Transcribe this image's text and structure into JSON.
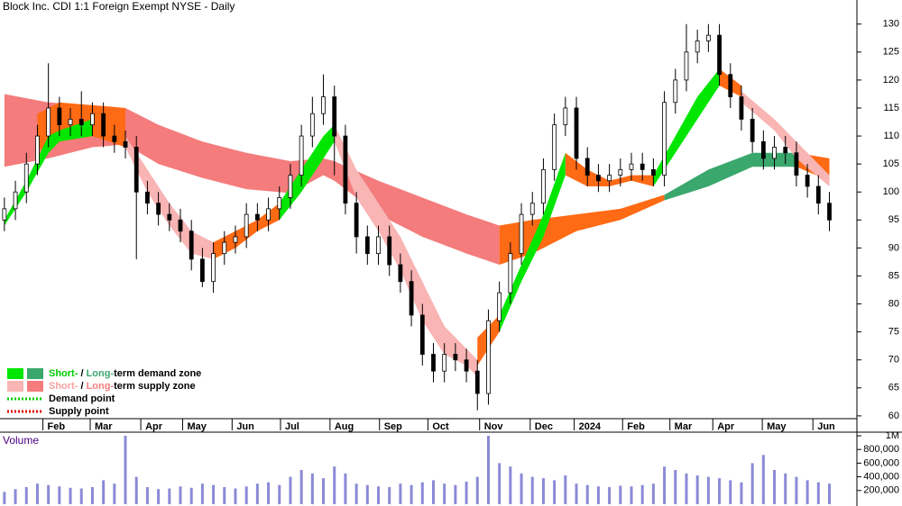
{
  "chart_data": {
    "type": "candlestick",
    "title": "Block Inc. CDI 1:1 Foreign Exempt NYSE - Daily",
    "x": [
      0,
      1,
      2,
      3,
      4,
      5,
      6,
      7,
      8,
      9,
      10,
      11,
      12,
      13,
      14,
      15,
      16,
      17,
      18,
      19,
      20,
      21,
      22,
      23,
      24,
      25,
      26,
      27,
      28,
      29,
      30,
      31,
      32,
      33,
      34,
      35,
      36,
      37,
      38,
      39,
      40,
      41,
      42,
      43,
      44,
      45,
      46,
      47,
      48,
      49,
      50,
      51,
      52,
      53,
      54,
      55,
      56,
      57,
      58,
      59,
      60,
      61,
      62,
      63,
      64,
      65,
      66,
      67,
      68,
      69,
      70,
      71,
      72,
      73,
      74,
      75
    ],
    "open": [
      95,
      97,
      100,
      105,
      110,
      115,
      112,
      113,
      112,
      114,
      110,
      109,
      108,
      100,
      98,
      96,
      95,
      93,
      88,
      84,
      89,
      91,
      92,
      96,
      95,
      97,
      99,
      103,
      110,
      114,
      117,
      110,
      98,
      92,
      89,
      92,
      87,
      84,
      78,
      71,
      68,
      71,
      70,
      68,
      64,
      77,
      82,
      89,
      96,
      98,
      104,
      112,
      115,
      106,
      103,
      102,
      103,
      104,
      105,
      104,
      103,
      116,
      120,
      125,
      127,
      128,
      121,
      117,
      113,
      109,
      106,
      108,
      107,
      103,
      101,
      98
    ],
    "high": [
      99,
      102,
      107,
      112,
      123,
      117,
      115,
      118,
      116,
      116,
      112,
      111,
      110,
      102,
      100,
      98,
      97,
      95,
      90,
      91,
      93,
      94,
      98,
      98,
      99,
      101,
      105,
      112,
      117,
      121,
      119,
      112,
      100,
      94,
      94,
      94,
      89,
      86,
      80,
      73,
      73,
      73,
      72,
      70,
      79,
      84,
      91,
      98,
      100,
      106,
      114,
      117,
      117,
      108,
      105,
      105,
      106,
      107,
      107,
      106,
      118,
      122,
      130,
      129,
      130,
      130,
      123,
      119,
      115,
      111,
      110,
      110,
      109,
      105,
      103,
      100
    ],
    "low": [
      93,
      95,
      98,
      103,
      108,
      110,
      110,
      110,
      110,
      108,
      107,
      106,
      88,
      96,
      94,
      93,
      91,
      86,
      83,
      82,
      87,
      89,
      90,
      93,
      93,
      95,
      97,
      101,
      108,
      112,
      103,
      96,
      89,
      87,
      87,
      85,
      82,
      76,
      69,
      66,
      66,
      68,
      66,
      61,
      62,
      75,
      80,
      87,
      94,
      96,
      102,
      110,
      104,
      101,
      100,
      100,
      101,
      102,
      102,
      101,
      101,
      114,
      118,
      123,
      125,
      119,
      115,
      111,
      107,
      104,
      104,
      105,
      101,
      99,
      96,
      93
    ],
    "close": [
      97,
      100,
      105,
      110,
      115,
      112,
      113,
      112,
      114,
      110,
      109,
      108,
      100,
      98,
      96,
      95,
      93,
      88,
      84,
      89,
      91,
      92,
      96,
      95,
      97,
      99,
      103,
      110,
      114,
      117,
      110,
      98,
      92,
      89,
      92,
      87,
      84,
      78,
      71,
      68,
      71,
      70,
      68,
      64,
      77,
      82,
      89,
      96,
      98,
      104,
      112,
      115,
      106,
      103,
      102,
      103,
      104,
      105,
      104,
      103,
      116,
      120,
      125,
      127,
      128,
      121,
      117,
      113,
      109,
      106,
      108,
      107,
      103,
      101,
      98,
      95
    ],
    "xlim": [
      -0.4,
      77.5
    ],
    "xticks": [
      {
        "value": 3.5,
        "label": "Feb"
      },
      {
        "value": 7.8,
        "label": "Mar"
      },
      {
        "value": 12.4,
        "label": "Apr"
      },
      {
        "value": 16.2,
        "label": "May"
      },
      {
        "value": 20.7,
        "label": "Jun"
      },
      {
        "value": 25.1,
        "label": "Jul"
      },
      {
        "value": 29.6,
        "label": "Aug"
      },
      {
        "value": 34.1,
        "label": "Sep"
      },
      {
        "value": 38.5,
        "label": "Oct"
      },
      {
        "value": 43.2,
        "label": "Nov"
      },
      {
        "value": 47.8,
        "label": "Dec"
      },
      {
        "value": 51.8,
        "label": "2024"
      },
      {
        "value": 56.2,
        "label": "Feb"
      },
      {
        "value": 60.5,
        "label": "Mar"
      },
      {
        "value": 64.4,
        "label": "Apr"
      },
      {
        "value": 68.9,
        "label": "May"
      },
      {
        "value": 73.5,
        "label": "Jun"
      }
    ],
    "ylim": [
      59.5,
      134.3
    ],
    "yticks": [
      60,
      65,
      70,
      75,
      80,
      85,
      90,
      95,
      100,
      105,
      110,
      115,
      120,
      125,
      130
    ],
    "bands": [
      {
        "color": "#f47c7c",
        "x": [
          0,
          4,
          8,
          11,
          14,
          18,
          22,
          26,
          29,
          30,
          34,
          38,
          42,
          45
        ],
        "upper": [
          117.5,
          116,
          115.5,
          115,
          112,
          109,
          107,
          105.5,
          106,
          105.5,
          102,
          99,
          96,
          94
        ],
        "lower": [
          104.5,
          106,
          108,
          108.5,
          105,
          102.5,
          100.5,
          99.8,
          103,
          102,
          96,
          92,
          89,
          87
        ]
      },
      {
        "color": "#ff6a14",
        "x": [
          45,
          48,
          52,
          56,
          60
        ],
        "upper": [
          94,
          95,
          96,
          97,
          99.5
        ],
        "lower": [
          87,
          89,
          93,
          95,
          98.5
        ]
      },
      {
        "color": "#3aa76d",
        "x": [
          60,
          64,
          68,
          72
        ],
        "upper": [
          99.5,
          104,
          107,
          107
        ],
        "lower": [
          98.5,
          101,
          104.5,
          104.5
        ]
      },
      {
        "color": "#ff6a14",
        "x": [
          72,
          75
        ],
        "upper": [
          107,
          106
        ],
        "lower": [
          104.5,
          102
        ]
      },
      {
        "color": "#ff6a14",
        "x": [
          3,
          4,
          5,
          8,
          11
        ],
        "upper": [
          114,
          115,
          116,
          115.5,
          115
        ],
        "lower": [
          108,
          107,
          109,
          110,
          108
        ]
      },
      {
        "color": "#00e600",
        "x": [
          0,
          2,
          4,
          5,
          8
        ],
        "upper": [
          95,
          102,
          110,
          111,
          113
        ],
        "lower": [
          94,
          100,
          107,
          109,
          110
        ]
      },
      {
        "color": "#f9b4b4",
        "x": [
          11,
          13,
          15,
          17,
          19
        ],
        "upper": [
          110,
          104,
          98,
          93,
          91
        ],
        "lower": [
          108,
          100,
          94,
          89,
          88
        ]
      },
      {
        "color": "#ff6a14",
        "x": [
          19,
          21,
          23,
          25
        ],
        "upper": [
          91,
          93,
          95,
          98
        ],
        "lower": [
          88,
          90,
          93,
          95
        ]
      },
      {
        "color": "#00e600",
        "x": [
          25,
          27,
          29,
          30
        ],
        "upper": [
          98,
          104,
          110,
          112
        ],
        "lower": [
          95,
          100,
          106,
          109
        ]
      },
      {
        "color": "#f9b4b4",
        "x": [
          30,
          32,
          34,
          36,
          38,
          40,
          42,
          43
        ],
        "upper": [
          112,
          104,
          98,
          92,
          84,
          76,
          72,
          70
        ],
        "lower": [
          109,
          99,
          93,
          86,
          77,
          71,
          69,
          67
        ]
      },
      {
        "color": "#ff6a14",
        "x": [
          43,
          45
        ],
        "upper": [
          74,
          78
        ],
        "lower": [
          69,
          75
        ]
      },
      {
        "color": "#00e600",
        "x": [
          45,
          47,
          49,
          51
        ],
        "upper": [
          78,
          87,
          96,
          107
        ],
        "lower": [
          75,
          84,
          92,
          103
        ]
      },
      {
        "color": "#ff6a14",
        "x": [
          51,
          53,
          55,
          57,
          59
        ],
        "upper": [
          107,
          104,
          102,
          103,
          103
        ],
        "lower": [
          103,
          101,
          101,
          102,
          101
        ]
      },
      {
        "color": "#00e600",
        "x": [
          59,
          61,
          63,
          65
        ],
        "upper": [
          103,
          110,
          117,
          122
        ],
        "lower": [
          101,
          107,
          113,
          119
        ]
      },
      {
        "color": "#ff6a14",
        "x": [
          65,
          67
        ],
        "upper": [
          122,
          119
        ],
        "lower": [
          119,
          117
        ]
      },
      {
        "color": "#f9b4b4",
        "x": [
          67,
          70,
          72,
          75
        ],
        "upper": [
          118,
          113,
          109,
          103
        ],
        "lower": [
          116,
          111,
          106,
          101
        ]
      }
    ],
    "legend": [
      {
        "swatches": [
          "#00e600",
          "#3aa76d"
        ],
        "parts": [
          {
            "text": "Short-",
            "color": "#00cc00"
          },
          {
            "text": " / "
          },
          {
            "text": "Long-",
            "color": "#3aa76d"
          },
          {
            "text": "term demand zone"
          }
        ]
      },
      {
        "swatches": [
          "#f9b4b4",
          "#f47c7c"
        ],
        "parts": [
          {
            "text": "Short-",
            "color": "#f9a0a0"
          },
          {
            "text": " / "
          },
          {
            "text": "Long-",
            "color": "#f47c7c"
          },
          {
            "text": "term supply zone"
          }
        ]
      },
      {
        "dotted": "#00cc00",
        "parts": [
          {
            "text": "Demand point"
          }
        ]
      },
      {
        "dotted": "#e00000",
        "parts": [
          {
            "text": "Supply point"
          }
        ]
      }
    ],
    "volume": {
      "title": "Volume",
      "color": "#8a8ad8",
      "values": [
        180000,
        220000,
        250000,
        300000,
        280000,
        260000,
        240000,
        230000,
        250000,
        350000,
        300000,
        1000000,
        400000,
        250000,
        220000,
        230000,
        260000,
        240000,
        300000,
        280000,
        250000,
        230000,
        260000,
        300000,
        320000,
        280000,
        400000,
        500000,
        450000,
        380000,
        550000,
        450000,
        300000,
        280000,
        260000,
        250000,
        300000,
        280000,
        320000,
        350000,
        300000,
        280000,
        330000,
        400000,
        1000000,
        600000,
        550000,
        450000,
        400000,
        380000,
        350000,
        420000,
        300000,
        280000,
        260000,
        250000,
        270000,
        260000,
        280000,
        300000,
        550000,
        500000,
        450000,
        420000,
        400000,
        380000,
        350000,
        320000,
        600000,
        720000,
        500000,
        450000,
        400000,
        350000,
        320000,
        300000
      ],
      "ylim": [
        0,
        1000000
      ],
      "yticks": [
        {
          "value": 200000,
          "label": "200,000"
        },
        {
          "value": 400000,
          "label": "400,000"
        },
        {
          "value": 600000,
          "label": "600,000"
        },
        {
          "value": 800000,
          "label": "800,000"
        },
        {
          "value": 1000000,
          "label": "1M"
        }
      ]
    }
  }
}
